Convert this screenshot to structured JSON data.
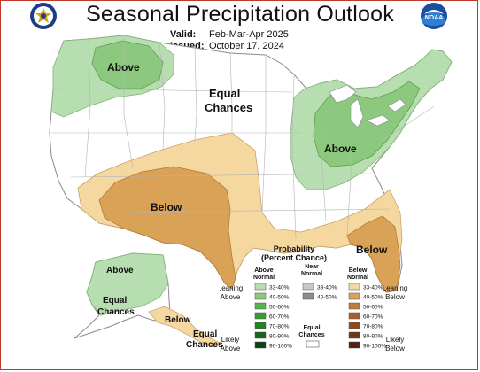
{
  "header": {
    "title": "Seasonal Precipitation Outlook",
    "valid_label": "Valid:",
    "valid_value": "Feb-Mar-Apr 2025",
    "issued_label": "Issued:",
    "issued_value": "October 17, 2024"
  },
  "logos": {
    "left": "noaa-department-of-commerce-seal-icon",
    "right": "noaa-logo-icon",
    "right_text": "NOAA"
  },
  "map": {
    "labels": {
      "above_nw": "Above",
      "equal_1": "Equal",
      "equal_2": "Chances",
      "above_ne": "Above",
      "below_sw": "Below",
      "below_se": "Below",
      "ak_above": "Above",
      "ak_equal_1": "Equal",
      "ak_equal_2": "Chances",
      "ak_below": "Below",
      "ak_equal_b1": "Equal",
      "ak_equal_b2": "Chances"
    },
    "colors": {
      "above_light": "#b7deb0",
      "above_mid": "#8cc97f",
      "below_light": "#f5d7a0",
      "below_mid": "#d9a257",
      "border": "#a0a0a0"
    }
  },
  "legend": {
    "title_1": "Probability",
    "title_2": "(Percent Chance)",
    "col_above_1": "Above",
    "col_above_2": "Normal",
    "col_near_1": "Near",
    "col_near_2": "Normal",
    "col_below_1": "Below",
    "col_below_2": "Normal",
    "leaning_above_1": "Leaning",
    "leaning_above_2": "Above",
    "leaning_below_1": "Leaning",
    "leaning_below_2": "Below",
    "likely_above_1": "Likely",
    "likely_above_2": "Above",
    "likely_below_1": "Likely",
    "likely_below_2": "Below",
    "equal_1": "Equal",
    "equal_2": "Chances",
    "above_bins": [
      {
        "label": "33-40%",
        "color": "#b7deb0"
      },
      {
        "label": "40-50%",
        "color": "#8cc97f"
      },
      {
        "label": "50-60%",
        "color": "#5bb24d"
      },
      {
        "label": "60-70%",
        "color": "#3a9a35"
      },
      {
        "label": "70-80%",
        "color": "#257f27"
      },
      {
        "label": "80-90%",
        "color": "#16641c"
      },
      {
        "label": "90-100%",
        "color": "#0b4212"
      }
    ],
    "near_bins": [
      {
        "label": "33-40%",
        "color": "#c8c8c8"
      },
      {
        "label": "40-50%",
        "color": "#8d8d8d"
      }
    ],
    "below_bins": [
      {
        "label": "33-40%",
        "color": "#f5d7a0"
      },
      {
        "label": "40-50%",
        "color": "#d9a257"
      },
      {
        "label": "50-60%",
        "color": "#c07b3b"
      },
      {
        "label": "60-70%",
        "color": "#a85f2d"
      },
      {
        "label": "70-80%",
        "color": "#8d4a22"
      },
      {
        "label": "80-90%",
        "color": "#6f3518"
      },
      {
        "label": "90-100%",
        "color": "#4e2210"
      }
    ]
  }
}
